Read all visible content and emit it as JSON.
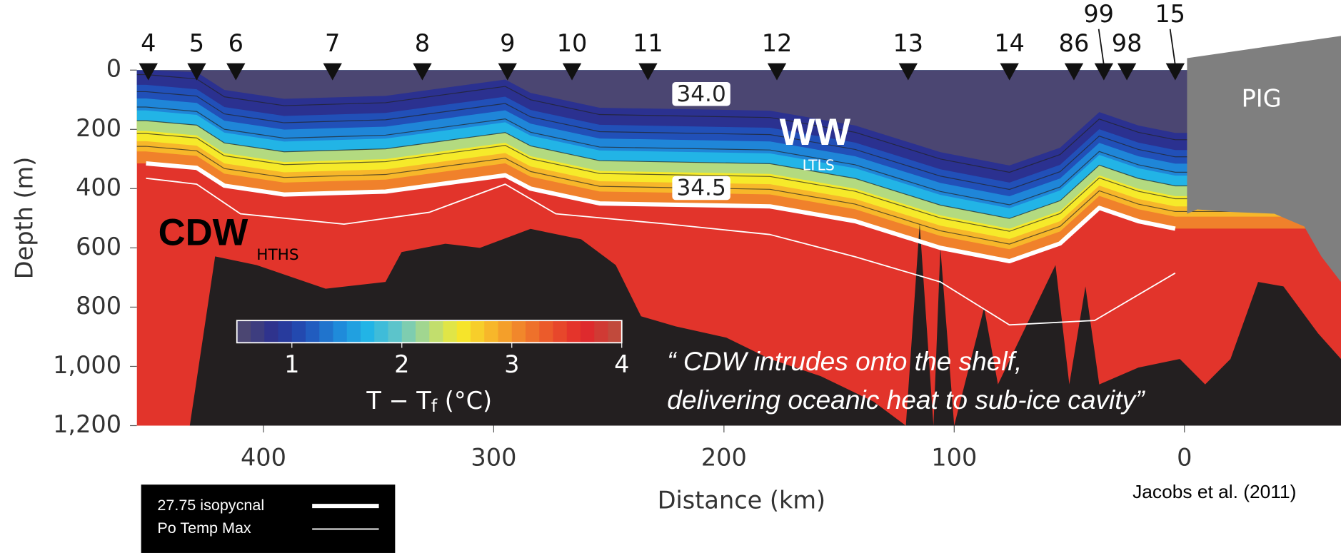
{
  "chart_data": {
    "type": "section",
    "xlabel": "Distance (km)",
    "ylabel": "Depth (m)",
    "xlim": [
      455,
      -68
    ],
    "ylim": [
      0,
      1200
    ],
    "xticks": [
      400,
      300,
      200,
      100,
      0
    ],
    "yticks": [
      0,
      200,
      400,
      600,
      800,
      {
        "value": 1000,
        "label": "1,000"
      },
      {
        "value": 1200,
        "label": "1,200"
      }
    ],
    "stations": {
      "names": [
        "4",
        "5",
        "6",
        "7",
        "8",
        "9",
        "10",
        "11",
        "12",
        "13",
        "14",
        "86",
        "99",
        "98",
        "15"
      ],
      "x": [
        450,
        429,
        412,
        370,
        331,
        294,
        266,
        233,
        177,
        120,
        76,
        48,
        35,
        25,
        4
      ]
    },
    "series": [
      {
        "name": "27.75 isopycnal",
        "color": "#ffffff",
        "line_width": 5,
        "x": [
          451,
          429,
          417,
          391,
          347,
          314,
          295,
          284,
          254,
          180,
          143,
          106,
          76,
          54,
          37,
          20,
          4
        ],
        "values": [
          315,
          330,
          390,
          420,
          410,
          375,
          355,
          400,
          450,
          460,
          510,
          600,
          645,
          585,
          465,
          510,
          535
        ]
      },
      {
        "name": "Po Temp Max",
        "color": "#ffffff",
        "line_width": 1.5,
        "x": [
          451,
          429,
          410,
          365,
          328,
          295,
          273,
          224,
          180,
          143,
          106,
          76,
          39,
          4
        ],
        "values": [
          365,
          385,
          485,
          520,
          480,
          385,
          485,
          520,
          555,
          630,
          715,
          860,
          845,
          685
        ]
      }
    ],
    "bathymetry": {
      "color": "#231f20",
      "x": [
        432,
        421,
        403,
        373,
        347,
        340,
        321,
        306,
        284,
        262,
        247,
        236,
        221,
        199,
        180,
        158,
        135,
        121,
        115,
        109,
        106,
        100,
        87,
        81,
        56,
        50,
        43,
        37,
        20,
        2,
        -9,
        -20,
        -32,
        -43,
        -58,
        -68
      ],
      "values": [
        1200,
        629,
        658,
        738,
        715,
        614,
        586,
        600,
        536,
        571,
        658,
        831,
        865,
        903,
        975,
        1033,
        1119,
        1200,
        519,
        1200,
        600,
        1200,
        802,
        1061,
        658,
        1061,
        730,
        1061,
        1004,
        975,
        1061,
        975,
        715,
        730,
        888,
        975
      ]
    },
    "colorbar": {
      "label_parts": [
        "T − T",
        "f",
        " (°C)"
      ],
      "lim": [
        0.5,
        4
      ],
      "ticks": [
        1,
        2,
        3,
        4
      ],
      "colormap": [
        "#4b4672",
        "#2b3190",
        "#2150b8",
        "#1f86d8",
        "#22b4e6",
        "#63c6c8",
        "#b3da80",
        "#f6ea2a",
        "#f7b72a",
        "#f0812b",
        "#e9502b",
        "#e2262b",
        "#c14a3c"
      ]
    },
    "contour_labels": [
      "34.0",
      "34.5"
    ],
    "annotations": {
      "ww": "WW",
      "ltls": "LTLS",
      "cdw": "CDW",
      "hths": "HTHS",
      "pig": "PIG",
      "quote": [
        "“ CDW intrudes onto the shelf,",
        "delivering oceanic heat to sub-ice cavity”"
      ],
      "source": "Jacobs et al. (2011)"
    }
  }
}
